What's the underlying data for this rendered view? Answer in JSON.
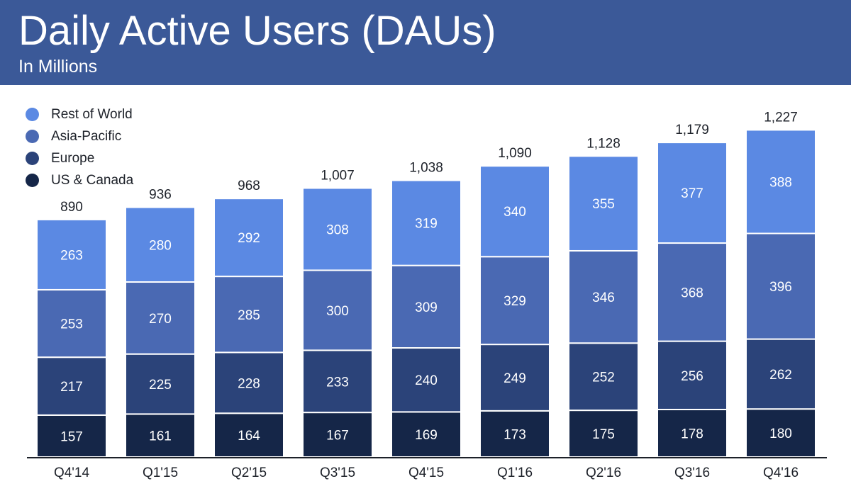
{
  "header": {
    "title": "Daily Active Users (DAUs)",
    "subtitle": "In Millions"
  },
  "chart_data": {
    "type": "bar",
    "stacked": true,
    "title": "Daily Active Users (DAUs)",
    "subtitle": "In Millions",
    "xlabel": "",
    "ylabel": "",
    "grid": false,
    "legend_position": "top-left",
    "categories": [
      "Q4'14",
      "Q1'15",
      "Q2'15",
      "Q3'15",
      "Q4'15",
      "Q1'16",
      "Q2'16",
      "Q3'16",
      "Q4'16"
    ],
    "totals": [
      "890",
      "936",
      "968",
      "1,007",
      "1,038",
      "1,090",
      "1,128",
      "1,179",
      "1,227"
    ],
    "total_values": [
      890,
      936,
      968,
      1007,
      1038,
      1090,
      1128,
      1179,
      1227
    ],
    "series": [
      {
        "name": "US & Canada",
        "color": "#152648",
        "values": [
          157,
          161,
          164,
          167,
          169,
          173,
          175,
          178,
          180
        ]
      },
      {
        "name": "Europe",
        "color": "#2b4379",
        "values": [
          217,
          225,
          228,
          233,
          240,
          249,
          252,
          256,
          262
        ]
      },
      {
        "name": "Asia-Pacific",
        "color": "#4a69b3",
        "values": [
          253,
          270,
          285,
          300,
          309,
          329,
          346,
          368,
          396
        ]
      },
      {
        "name": "Rest of World",
        "color": "#5b89e3",
        "values": [
          263,
          280,
          292,
          308,
          319,
          340,
          355,
          377,
          388
        ]
      }
    ],
    "legend_order": [
      3,
      2,
      1,
      0
    ]
  }
}
